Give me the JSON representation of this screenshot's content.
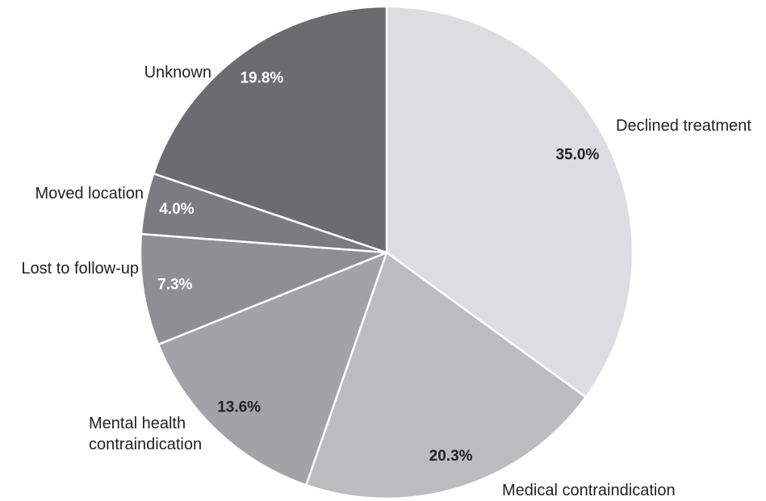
{
  "chart_data": {
    "type": "pie",
    "categories": [
      "Declined treatment",
      "Medical contraindication",
      "Mental health contraindication",
      "Lost to follow-up",
      "Moved location",
      "Unknown"
    ],
    "values": [
      35.0,
      20.3,
      13.6,
      7.3,
      4.0,
      19.8
    ],
    "value_labels": [
      "35.0%",
      "20.3%",
      "13.6%",
      "7.3%",
      "4.0%",
      "19.8%"
    ],
    "colors": [
      "#dcdde0",
      "#bbbcc0",
      "#a2a3a7",
      "#8e8f93",
      "#7b7c80",
      "#6b6c70"
    ]
  }
}
